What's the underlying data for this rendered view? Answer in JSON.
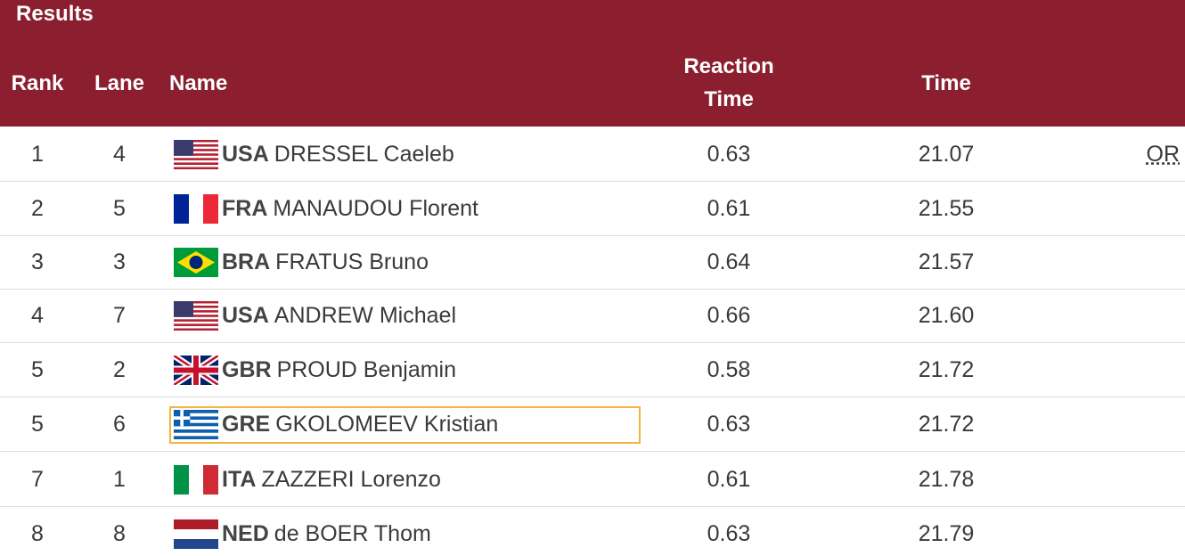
{
  "header": {
    "title": "Results",
    "columns": [
      "Rank",
      "Lane",
      "Name",
      "Reaction Time",
      "Time"
    ]
  },
  "rows": [
    {
      "rank": "1",
      "lane": "4",
      "noc": "USA",
      "name": "DRESSEL Caeleb",
      "reaction_time": "0.63",
      "time": "21.07",
      "record": "OR"
    },
    {
      "rank": "2",
      "lane": "5",
      "noc": "FRA",
      "name": "MANAUDOU Florent",
      "reaction_time": "0.61",
      "time": "21.55"
    },
    {
      "rank": "3",
      "lane": "3",
      "noc": "BRA",
      "name": "FRATUS Bruno",
      "reaction_time": "0.64",
      "time": "21.57"
    },
    {
      "rank": "4",
      "lane": "7",
      "noc": "USA",
      "name": "ANDREW Michael",
      "reaction_time": "0.66",
      "time": "21.60"
    },
    {
      "rank": "5",
      "lane": "2",
      "noc": "GBR",
      "name": "PROUD Benjamin",
      "reaction_time": "0.58",
      "time": "21.72"
    },
    {
      "rank": "5",
      "lane": "6",
      "noc": "GRE",
      "name": "GKOLOMEEV Kristian",
      "reaction_time": "0.63",
      "time": "21.72"
    },
    {
      "rank": "7",
      "lane": "1",
      "noc": "ITA",
      "name": "ZAZZERI Lorenzo",
      "reaction_time": "0.61",
      "time": "21.78"
    },
    {
      "rank": "8",
      "lane": "8",
      "noc": "NED",
      "name": "de BOER Thom",
      "reaction_time": "0.63",
      "time": "21.79"
    }
  ]
}
